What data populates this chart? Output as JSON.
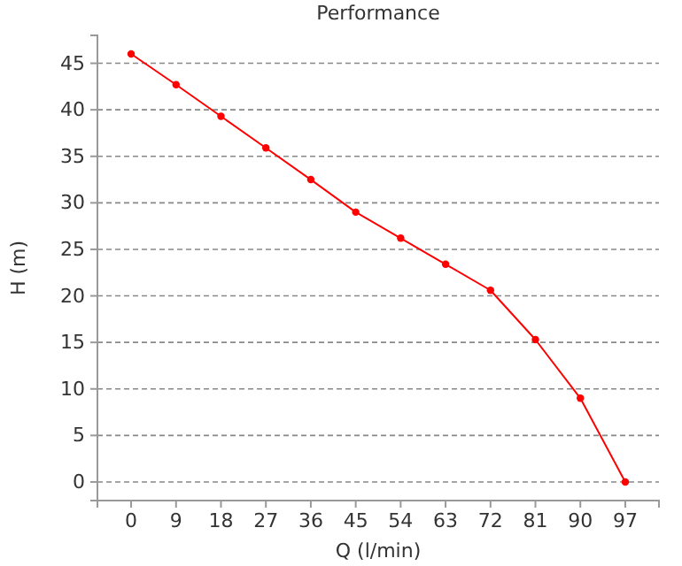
{
  "chart_data": {
    "type": "line",
    "title": "Performance",
    "xlabel": "Q (l/min)",
    "ylabel": "H (m)",
    "categories": [
      "0",
      "9",
      "18",
      "27",
      "36",
      "45",
      "54",
      "63",
      "72",
      "81",
      "90",
      "97"
    ],
    "series": [
      {
        "color": "#ff0000",
        "values": [
          46,
          42.7,
          39.3,
          35.9,
          32.5,
          29,
          26.2,
          23.4,
          20.6,
          15.3,
          9,
          0
        ]
      }
    ],
    "ylim": [
      -2,
      48
    ],
    "yticks": [
      0,
      5,
      10,
      15,
      20,
      25,
      30,
      35,
      40,
      45
    ],
    "grid": "y",
    "marker": "circle",
    "line_style": "solid"
  }
}
